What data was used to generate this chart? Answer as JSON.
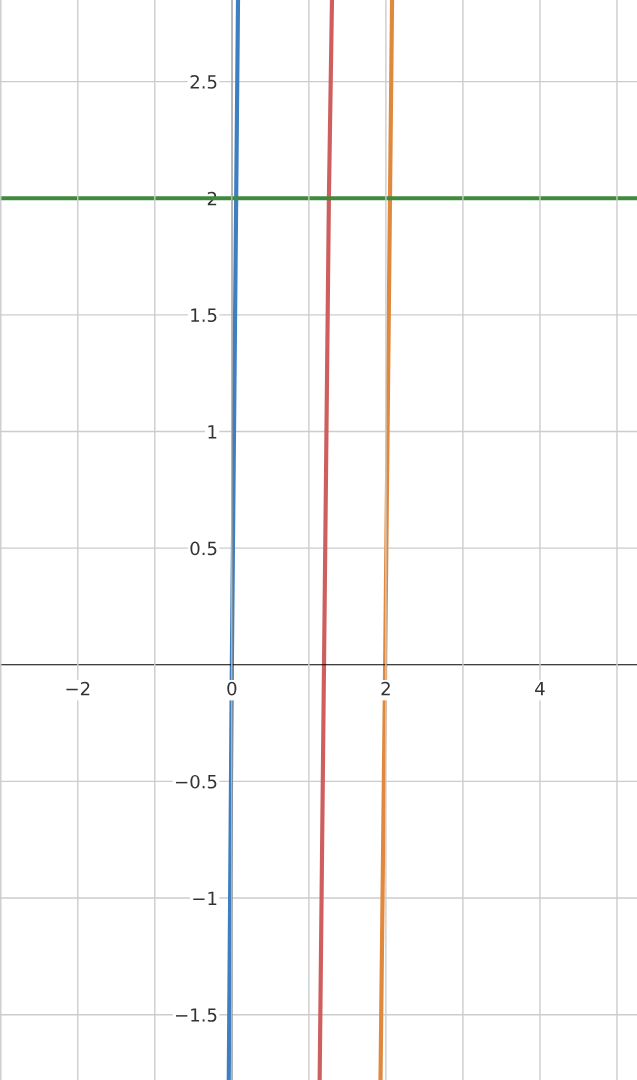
{
  "chart_data": {
    "type": "line",
    "series": [
      {
        "color": "#3d7fc0",
        "x": [
          -0.04,
          0.0,
          0.08
        ],
        "values": [
          -1.78,
          0,
          2.85
        ]
      },
      {
        "color": "#cf5f5f",
        "x": [
          1.14,
          1.26,
          1.3
        ],
        "values": [
          -1.78,
          2,
          2.85
        ]
      },
      {
        "color": "#e0893e",
        "x": [
          1.93,
          1.99,
          2.08
        ],
        "values": [
          -1.78,
          0,
          2.85
        ]
      },
      {
        "color": "#3f8a3f",
        "x": [
          -3.01,
          5.26
        ],
        "values": [
          2,
          2
        ]
      }
    ],
    "xlim": [
      -3.01,
      5.26
    ],
    "ylim": [
      -1.78,
      2.85
    ],
    "xticks": [
      {
        "value": -3,
        "label": null
      },
      {
        "value": -2,
        "label": "−2"
      },
      {
        "value": -1,
        "label": null
      },
      {
        "value": 0,
        "label": "0"
      },
      {
        "value": 1,
        "label": null
      },
      2,
      {
        "value": 3,
        "label": null
      },
      4,
      {
        "value": 5,
        "label": null
      }
    ],
    "yticks": [
      {
        "value": -1.5,
        "label": "−1.5"
      },
      {
        "value": -1,
        "label": "−1"
      },
      {
        "value": -0.5,
        "label": "−0.5"
      },
      0.5,
      1,
      1.5,
      2,
      2.5
    ],
    "grid": true,
    "marker": "none",
    "line_style": "solid"
  }
}
